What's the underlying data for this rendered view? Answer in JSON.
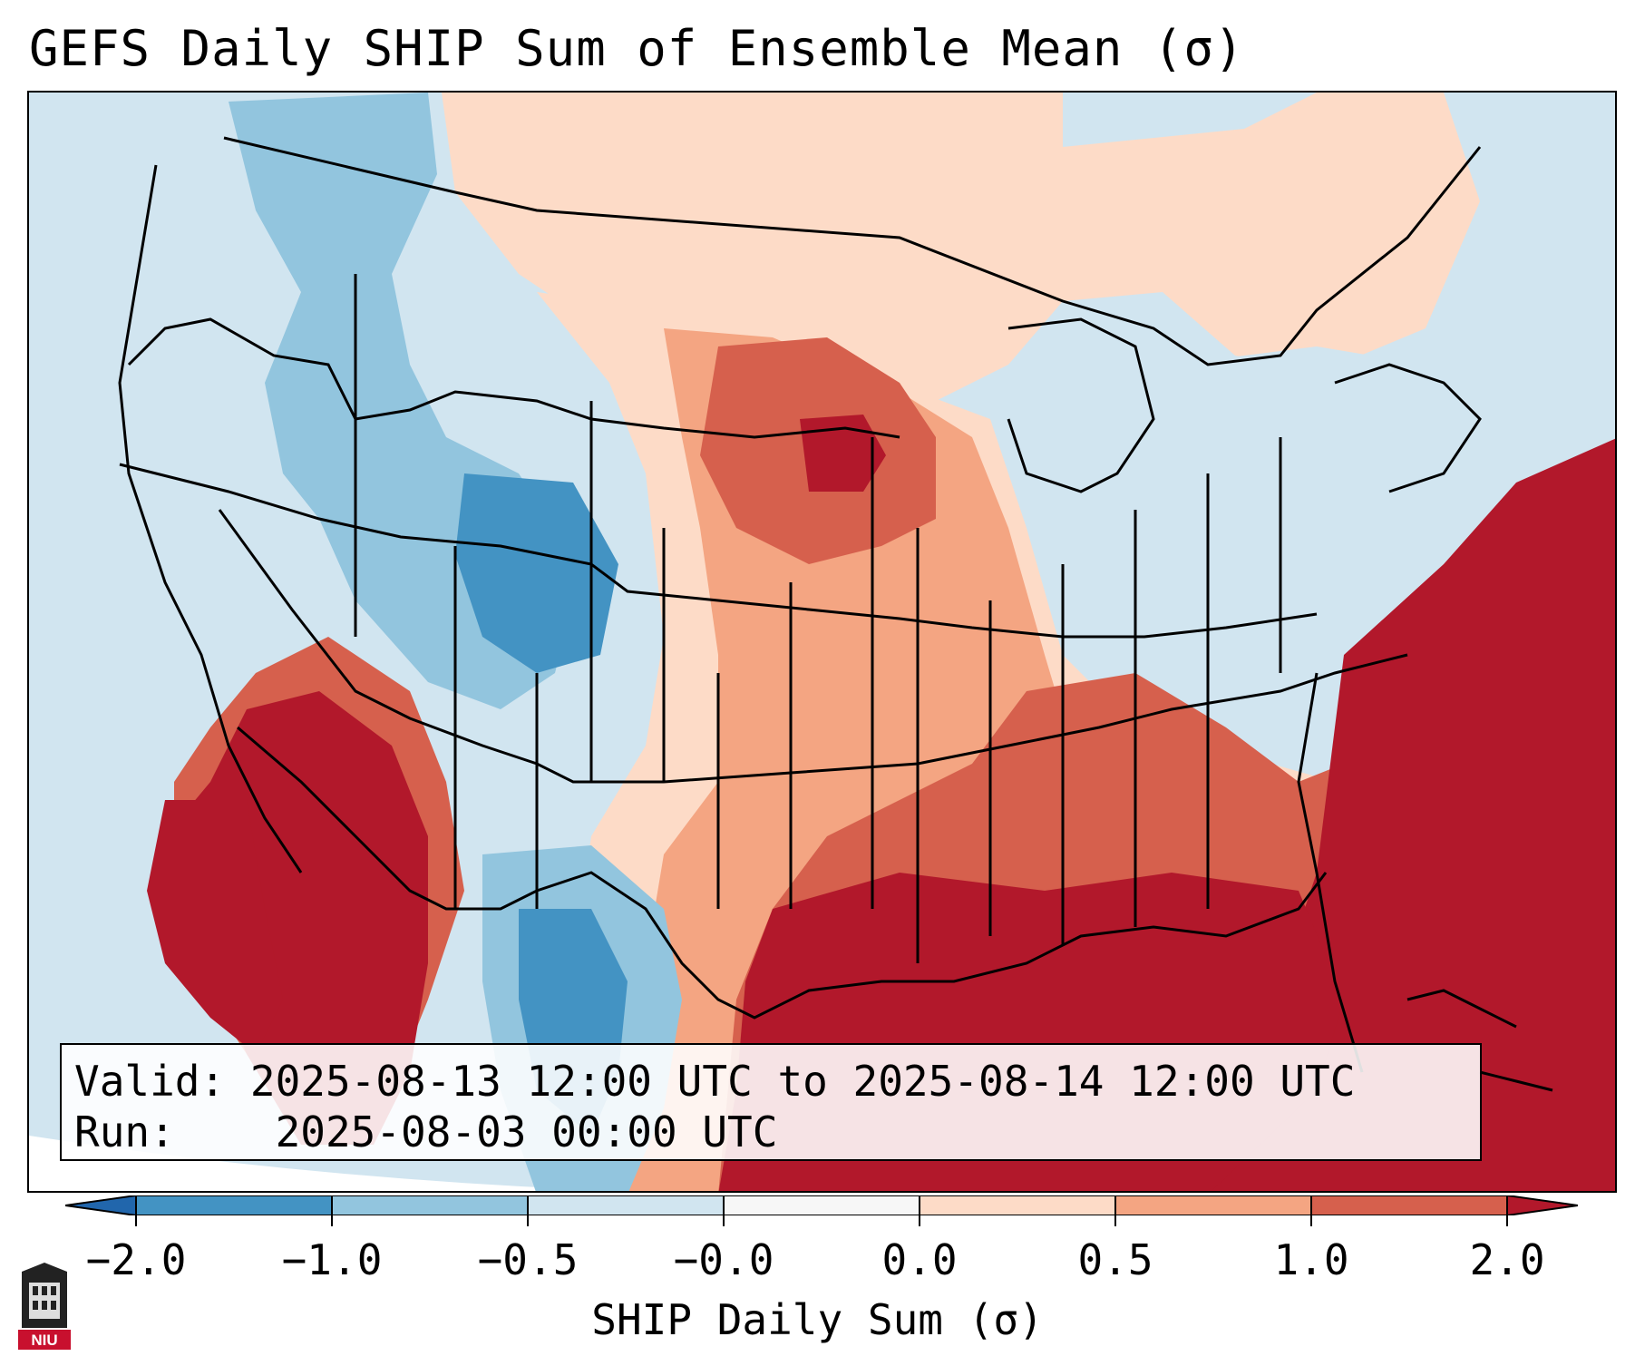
{
  "title": "GEFS Daily SHIP Sum of Ensemble Mean (σ)",
  "info_box": {
    "valid_label": "Valid:",
    "valid_value": "2025-08-13 12:00 UTC to 2025-08-14 12:00 UTC",
    "run_label": "Run:",
    "run_value": "2025-08-03 00:00 UTC"
  },
  "colorbar": {
    "label": "SHIP Daily Sum (σ)",
    "ticks": [
      "−2.0",
      "−1.0",
      "−0.5",
      "−0.0",
      "0.0",
      "0.5",
      "1.0",
      "2.0"
    ],
    "bins": [
      {
        "color": "#2166ac",
        "name": "below -2.0"
      },
      {
        "color": "#4393c3",
        "name": "-2.0 to -1.0"
      },
      {
        "color": "#92c5de",
        "name": "-1.0 to -0.5"
      },
      {
        "color": "#d1e5f0",
        "name": "-0.5 to -0.0"
      },
      {
        "color": "#f7f7f7",
        "name": "-0.0 to 0.0"
      },
      {
        "color": "#fddbc7",
        "name": "0.0 to 0.5"
      },
      {
        "color": "#f4a582",
        "name": "0.5 to 1.0"
      },
      {
        "color": "#d6604d",
        "name": "1.0 to 2.0"
      },
      {
        "color": "#b2182b",
        "name": "above 2.0"
      }
    ]
  },
  "logo": {
    "text": "NIU",
    "icon": "university-logo-icon"
  },
  "colors": {
    "strong_pos": "#b2182b",
    "pos": "#d6604d",
    "weak_pos": "#f4a582",
    "faint_pos": "#fddbc7",
    "faint_neg": "#d1e5f0",
    "weak_neg": "#92c5de",
    "neg": "#4393c3"
  }
}
